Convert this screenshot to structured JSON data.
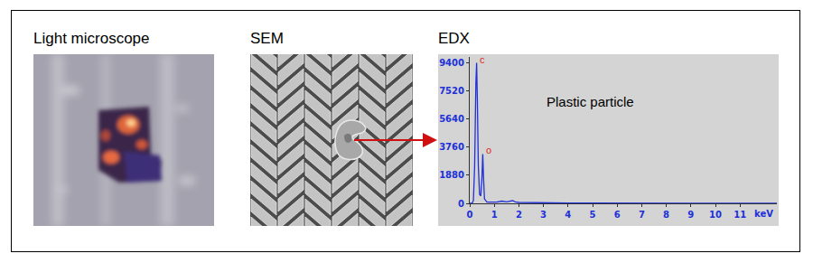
{
  "figure": {
    "panels": [
      "Light microscope",
      "SEM"
    ]
  },
  "chart_data": {
    "type": "line",
    "title": "EDX",
    "x_label": "keV",
    "x": [
      0,
      0.1,
      0.15,
      0.2,
      0.25,
      0.28,
      0.31,
      0.35,
      0.4,
      0.45,
      0.5,
      0.53,
      0.56,
      0.6,
      0.7,
      0.9,
      1.1,
      1.3,
      1.5,
      1.75,
      1.85,
      2.0,
      2.5,
      3,
      4,
      5,
      6,
      7,
      8,
      9,
      10,
      11,
      12.5
    ],
    "values": [
      0,
      0,
      200,
      2500,
      8000,
      9400,
      7000,
      2500,
      600,
      500,
      1800,
      3300,
      1800,
      300,
      80,
      60,
      80,
      150,
      100,
      180,
      100,
      60,
      40,
      30,
      20,
      15,
      10,
      10,
      5,
      5,
      5,
      5,
      5
    ],
    "color": "#2030d8",
    "xlim": [
      0,
      12.5
    ],
    "xticks": [
      0,
      1,
      2,
      3,
      4,
      5,
      6,
      7,
      8,
      9,
      10,
      11
    ],
    "ylim": [
      0,
      9800
    ],
    "yticks": [
      0,
      1880,
      3760,
      5640,
      7520,
      9400
    ],
    "grid": false,
    "annotations": [
      {
        "text": "Plastic particle",
        "x": 4.9,
        "y": 6800,
        "color": "#000000"
      },
      {
        "text": "c",
        "x": 0.3,
        "y": 9400,
        "color": "#e02818"
      },
      {
        "text": "o",
        "x": 0.55,
        "y": 3300,
        "color": "#e02818"
      }
    ]
  }
}
